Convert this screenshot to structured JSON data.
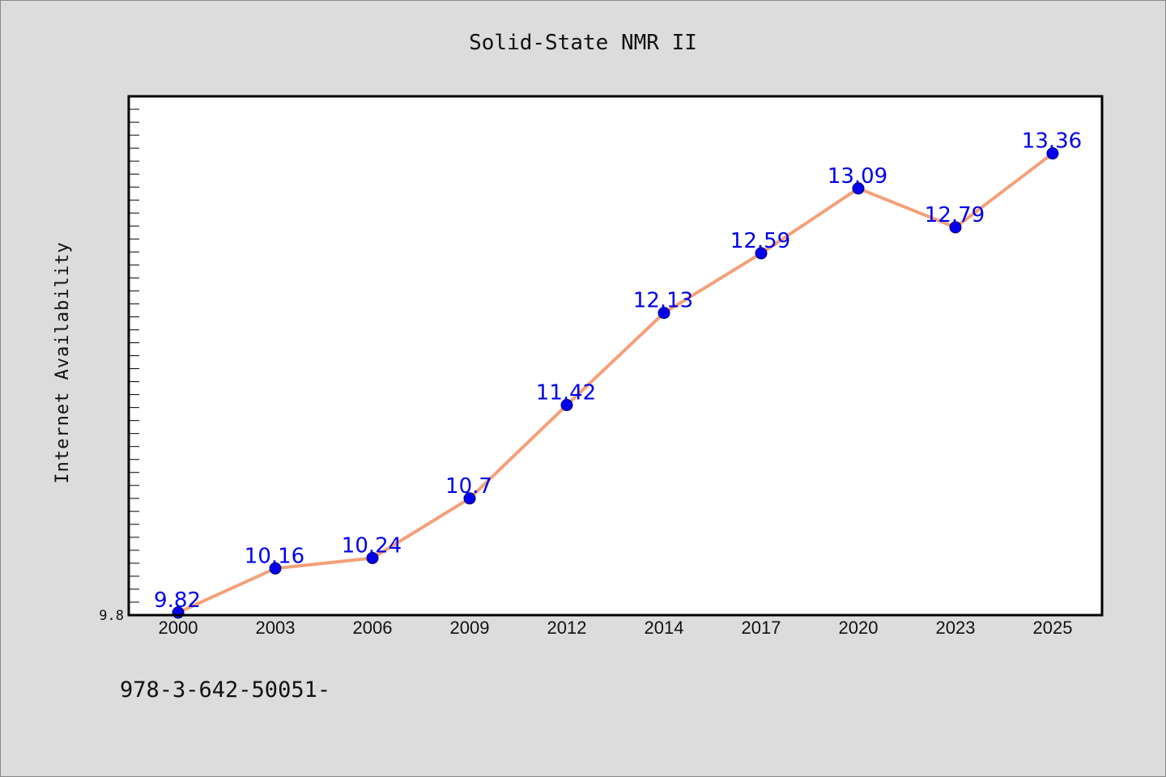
{
  "chart_data": {
    "type": "line",
    "title": "Solid-State NMR II",
    "xlabel": "",
    "ylabel": "Internet Availability",
    "categories": [
      "2000",
      "2003",
      "2006",
      "2009",
      "2012",
      "2014",
      "2017",
      "2020",
      "2023",
      "2025"
    ],
    "values": [
      9.82,
      10.16,
      10.24,
      10.7,
      11.42,
      12.13,
      12.59,
      13.09,
      12.79,
      13.36
    ],
    "data_labels": [
      "9.82",
      "10.16",
      "10.24",
      "10.7",
      "11.42",
      "12.13",
      "12.59",
      "13.09",
      "12.79",
      "13.36"
    ],
    "ylim": [
      9.8,
      13.8
    ],
    "y_tick_labels": [
      "9.8"
    ],
    "grid": false,
    "legend": "none",
    "colors": {
      "line": "#f4a07a",
      "marker": "#0000ee",
      "data_label": "#0000ee",
      "plot_background": "#ffffff",
      "figure_background": "#dcdcdc"
    }
  },
  "footnote": "978-3-642-50051-"
}
